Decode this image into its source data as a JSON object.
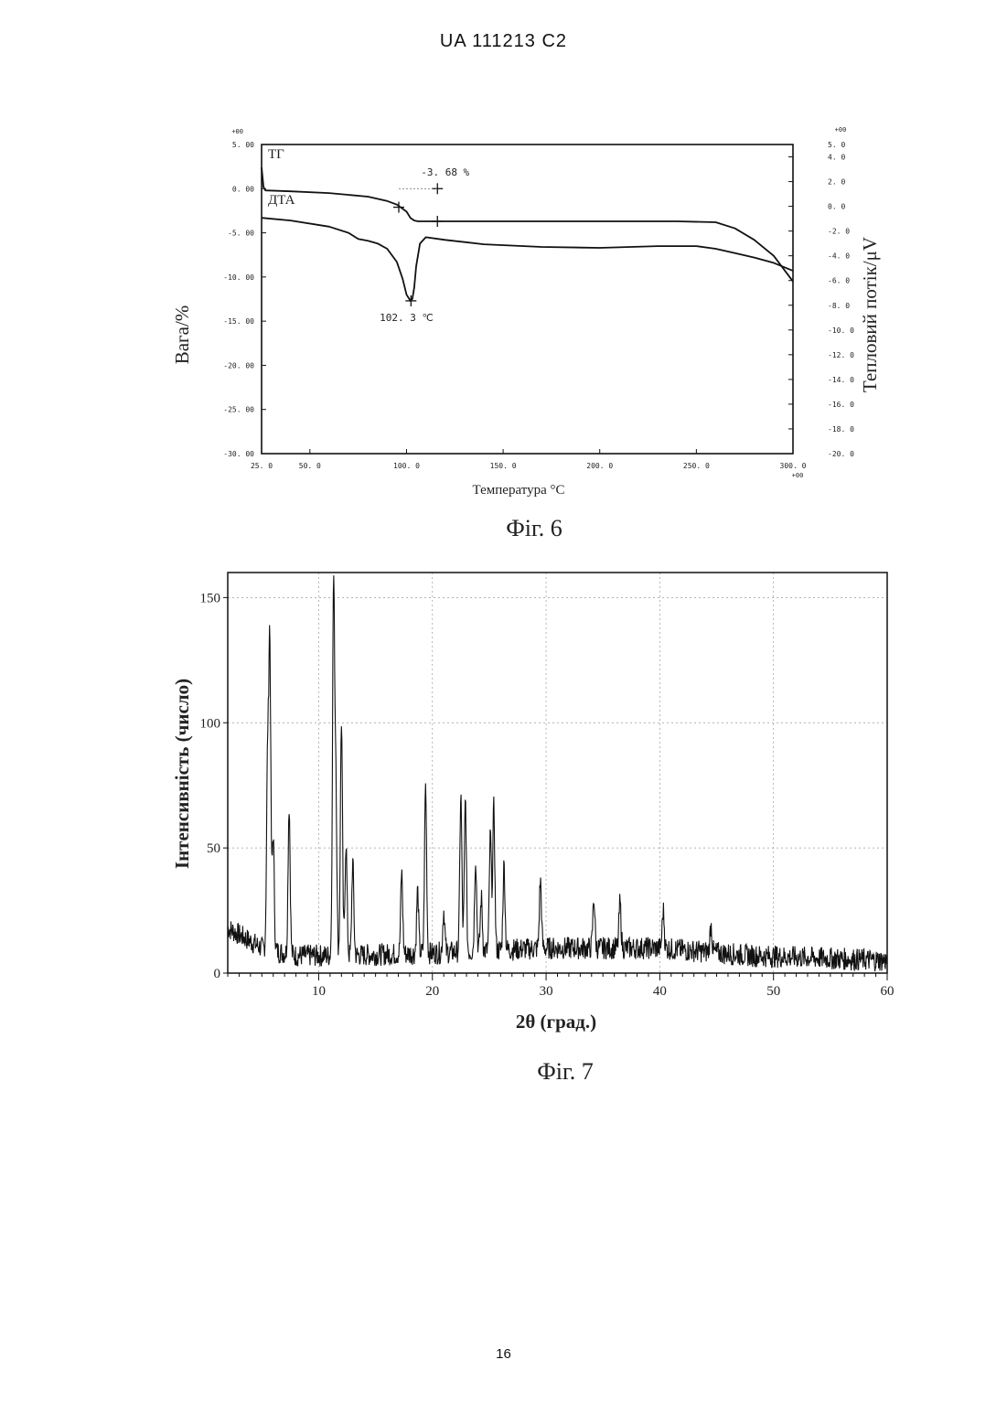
{
  "header": {
    "doc_id": "UA   111213   C2"
  },
  "page_number": "16",
  "chart_data": [
    {
      "type": "line",
      "figure_caption": "Фіг. 6",
      "xlabel": "Температура °С",
      "ylabel_left": "Вага/%",
      "ylabel_right": "Тепловий потік/μV",
      "x_range": [
        25.0,
        300.0
      ],
      "x_ticks": [
        "25. 0",
        "50. 0",
        "100. 0",
        "150. 0",
        "200. 0",
        "250. 0",
        "300. 0"
      ],
      "x_tick_values": [
        25,
        50,
        100,
        150,
        200,
        250,
        300
      ],
      "x_exponent": "+00",
      "y_left_range": [
        -30.0,
        5.0
      ],
      "y_left_ticks": [
        "5. 00",
        "0. 00",
        "-5. 00",
        "-10. 00",
        "-15. 00",
        "-20. 00",
        "-25. 00",
        "-30. 00"
      ],
      "y_left_tick_values": [
        5,
        0,
        -5,
        -10,
        -15,
        -20,
        -25,
        -30
      ],
      "y_left_exponent": "+00",
      "y_right_range": [
        -20.0,
        5.0
      ],
      "y_right_ticks": [
        "5. 0",
        "4. 0",
        "2. 0",
        "0. 0",
        "-2. 0",
        "-4. 0",
        "-6. 0",
        "-8. 0",
        "-10. 0",
        "-12. 0",
        "-14. 0",
        "-16. 0",
        "-18. 0",
        "-20. 0"
      ],
      "y_right_tick_values": [
        5,
        4,
        2,
        0,
        -2,
        -4,
        -6,
        -8,
        -10,
        -12,
        -14,
        -16,
        -18,
        -20
      ],
      "y_right_exponent": "+00",
      "series": [
        {
          "name": "ТГ",
          "axis": "left",
          "x": [
            25,
            26,
            27,
            40,
            60,
            80,
            90,
            95,
            100,
            102,
            104,
            106,
            110,
            115,
            130,
            150,
            200,
            240,
            260,
            270,
            280,
            290,
            300
          ],
          "y": [
            2.4,
            0.2,
            -0.2,
            -0.3,
            -0.5,
            -0.9,
            -1.4,
            -1.8,
            -2.6,
            -3.3,
            -3.6,
            -3.7,
            -3.7,
            -3.7,
            -3.7,
            -3.7,
            -3.7,
            -3.7,
            -3.8,
            -4.5,
            -5.8,
            -7.6,
            -10.5
          ]
        },
        {
          "name": "ДТА",
          "axis": "left",
          "x": [
            25,
            40,
            60,
            70,
            75,
            80,
            85,
            90,
            95,
            98,
            100,
            102,
            103,
            104,
            105,
            107,
            110,
            120,
            140,
            170,
            200,
            230,
            250,
            260,
            270,
            280,
            290,
            300
          ],
          "y": [
            -3.3,
            -3.6,
            -4.3,
            -5.0,
            -5.7,
            -5.9,
            -6.2,
            -6.8,
            -8.3,
            -10.2,
            -12.0,
            -12.7,
            -12.5,
            -11.2,
            -8.8,
            -6.2,
            -5.5,
            -5.8,
            -6.3,
            -6.6,
            -6.7,
            -6.5,
            -6.5,
            -6.8,
            -7.3,
            -7.8,
            -8.4,
            -9.3
          ]
        }
      ],
      "annotations": [
        {
          "text": "-3. 68  %",
          "x": 120,
          "y": 1.5
        },
        {
          "text": "102. 3  ℃",
          "x": 100,
          "y": -15.0
        }
      ],
      "markers": [
        {
          "x": 96,
          "y": -2.1
        },
        {
          "x": 116,
          "y": 0.0
        },
        {
          "x": 116,
          "y": -3.7
        },
        {
          "x": 102.3,
          "y": -12.7
        }
      ],
      "grid": false
    },
    {
      "type": "line",
      "figure_caption": "Фіг. 7",
      "xlabel": "2θ (град.)",
      "ylabel": "Інтенсивність (число)",
      "x_range": [
        2,
        60
      ],
      "x_ticks": [
        "10",
        "20",
        "30",
        "40",
        "50",
        "60"
      ],
      "x_tick_values": [
        10,
        20,
        30,
        40,
        50,
        60
      ],
      "y_range": [
        0,
        160
      ],
      "y_ticks": [
        "0",
        "50",
        "100",
        "150"
      ],
      "y_tick_values": [
        0,
        50,
        100,
        150
      ],
      "baseline": [
        [
          2,
          18
        ],
        [
          5,
          10
        ],
        [
          8,
          7
        ],
        [
          12,
          7
        ],
        [
          20,
          8
        ],
        [
          30,
          10
        ],
        [
          40,
          10
        ],
        [
          48,
          7
        ],
        [
          60,
          5
        ]
      ],
      "peaks": [
        {
          "x": 5.5,
          "y": 84
        },
        {
          "x": 5.7,
          "y": 131
        },
        {
          "x": 6.0,
          "y": 55
        },
        {
          "x": 7.4,
          "y": 67
        },
        {
          "x": 11.3,
          "y": 152
        },
        {
          "x": 11.5,
          "y": 80
        },
        {
          "x": 12.0,
          "y": 101
        },
        {
          "x": 12.4,
          "y": 52
        },
        {
          "x": 13.0,
          "y": 44
        },
        {
          "x": 17.3,
          "y": 40
        },
        {
          "x": 18.7,
          "y": 33
        },
        {
          "x": 19.4,
          "y": 75
        },
        {
          "x": 21.0,
          "y": 25
        },
        {
          "x": 22.5,
          "y": 71
        },
        {
          "x": 22.9,
          "y": 69
        },
        {
          "x": 23.8,
          "y": 46
        },
        {
          "x": 24.3,
          "y": 30
        },
        {
          "x": 25.1,
          "y": 55
        },
        {
          "x": 25.4,
          "y": 66
        },
        {
          "x": 26.3,
          "y": 43
        },
        {
          "x": 29.5,
          "y": 37
        },
        {
          "x": 34.2,
          "y": 30
        },
        {
          "x": 36.5,
          "y": 28
        },
        {
          "x": 40.3,
          "y": 25
        },
        {
          "x": 44.5,
          "y": 19
        }
      ],
      "grid": true
    }
  ]
}
